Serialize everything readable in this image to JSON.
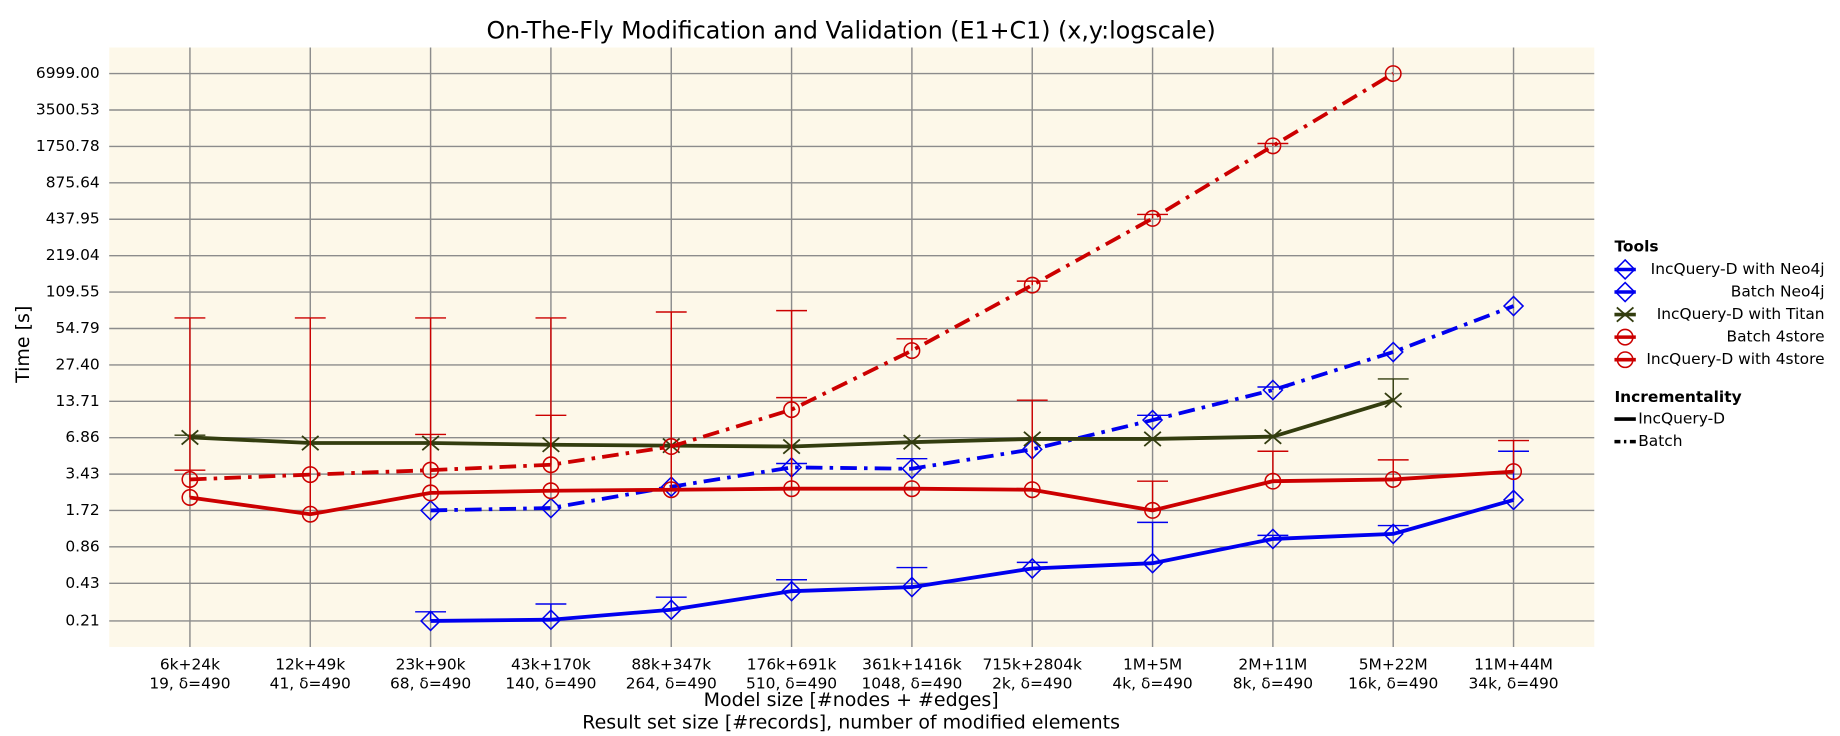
{
  "chart_data": {
    "type": "line",
    "title": "On-The-Fly Modification and Validation (E1+C1) (x,y:logscale)",
    "xlabel": [
      "Model size [#nodes + #edges]",
      "Result set size [#records], number of modified elements"
    ],
    "ylabel": "Time [s]",
    "categories": [
      "6k+24k",
      "12k+49k",
      "23k+90k",
      "43k+170k",
      "88k+347k",
      "176k+691k",
      "361k+1416k",
      "715k+2804k",
      "1M+5M",
      "2M+11M",
      "5M+22M",
      "11M+44M"
    ],
    "subcategories": [
      "19, δ=490",
      "41, δ=490",
      "68, δ=490",
      "140, δ=490",
      "264, δ=490",
      "510, δ=490",
      "1048, δ=490",
      "2k, δ=490",
      "4k, δ=490",
      "8k, δ=490",
      "16k, δ=490",
      "34k, δ=490"
    ],
    "log_y": true,
    "grid": true,
    "ylim": [
      0.128,
      11500
    ],
    "yticks": [
      0.21,
      0.43,
      0.86,
      1.72,
      3.43,
      6.86,
      13.71,
      {
        "value": 27.4,
        "label": "27.40"
      },
      54.79,
      109.55,
      219.04,
      437.95,
      875.64,
      1750.78,
      3500.53,
      {
        "value": 6999,
        "label": "6999.00"
      }
    ],
    "legend_title": "Tools",
    "legend_position": "right",
    "series": [
      {
        "name": "IncQuery-D with Neo4j",
        "color": "#0000ee",
        "dash": "solid",
        "marker": "diamond",
        "values": [
          null,
          null,
          0.21,
          0.215,
          0.26,
          0.37,
          0.4,
          0.57,
          0.63,
          1.0,
          1.1,
          2.1
        ],
        "upper": [
          null,
          null,
          0.25,
          0.29,
          0.33,
          0.46,
          0.58,
          0.64,
          1.37,
          1.07,
          1.29,
          5.3
        ]
      },
      {
        "name": "Batch Neo4j",
        "color": "#0000ee",
        "dash": "dashdot",
        "marker": "diamond",
        "values": [
          null,
          null,
          1.72,
          1.8,
          2.7,
          3.9,
          3.8,
          5.5,
          9.6,
          17,
          35,
          84
        ],
        "upper": [
          null,
          null,
          null,
          null,
          null,
          4.2,
          4.6,
          null,
          10.5,
          18,
          null,
          null
        ]
      },
      {
        "name": "IncQuery-D with Titan",
        "color": "#333d0f",
        "dash": "solid",
        "marker": "x",
        "values": [
          6.9,
          6.2,
          6.2,
          6.0,
          5.9,
          5.8,
          6.3,
          6.7,
          6.7,
          7.0,
          14,
          null
        ],
        "upper": [
          7.2,
          null,
          null,
          null,
          null,
          null,
          null,
          null,
          null,
          null,
          21,
          null
        ]
      },
      {
        "name": "Batch 4store",
        "color": "#cc0000",
        "dash": "dashdot",
        "marker": "circle",
        "values": [
          3.1,
          3.4,
          3.7,
          4.1,
          5.8,
          11.7,
          36,
          125,
          445,
          1770,
          6999,
          null
        ],
        "upper": [
          3.7,
          null,
          7.3,
          10.5,
          null,
          14.7,
          45,
          135,
          480,
          1850,
          null,
          null
        ]
      },
      {
        "name": "IncQuery-D with 4store",
        "color": "#cc0000",
        "dash": "solid",
        "marker": "circle",
        "values": [
          2.2,
          1.6,
          2.4,
          2.5,
          2.55,
          2.6,
          2.6,
          2.55,
          1.72,
          3.0,
          3.1,
          3.6
        ],
        "upper": [
          67,
          67,
          67,
          67,
          75,
          77,
          null,
          14,
          3.0,
          5.3,
          4.5,
          6.5
        ]
      }
    ],
    "style_legend": {
      "title": "Incrementality",
      "entries": [
        {
          "label": "IncQuery-D",
          "dash": "solid"
        },
        {
          "label": "Batch",
          "dash": "dashdot"
        }
      ]
    }
  }
}
